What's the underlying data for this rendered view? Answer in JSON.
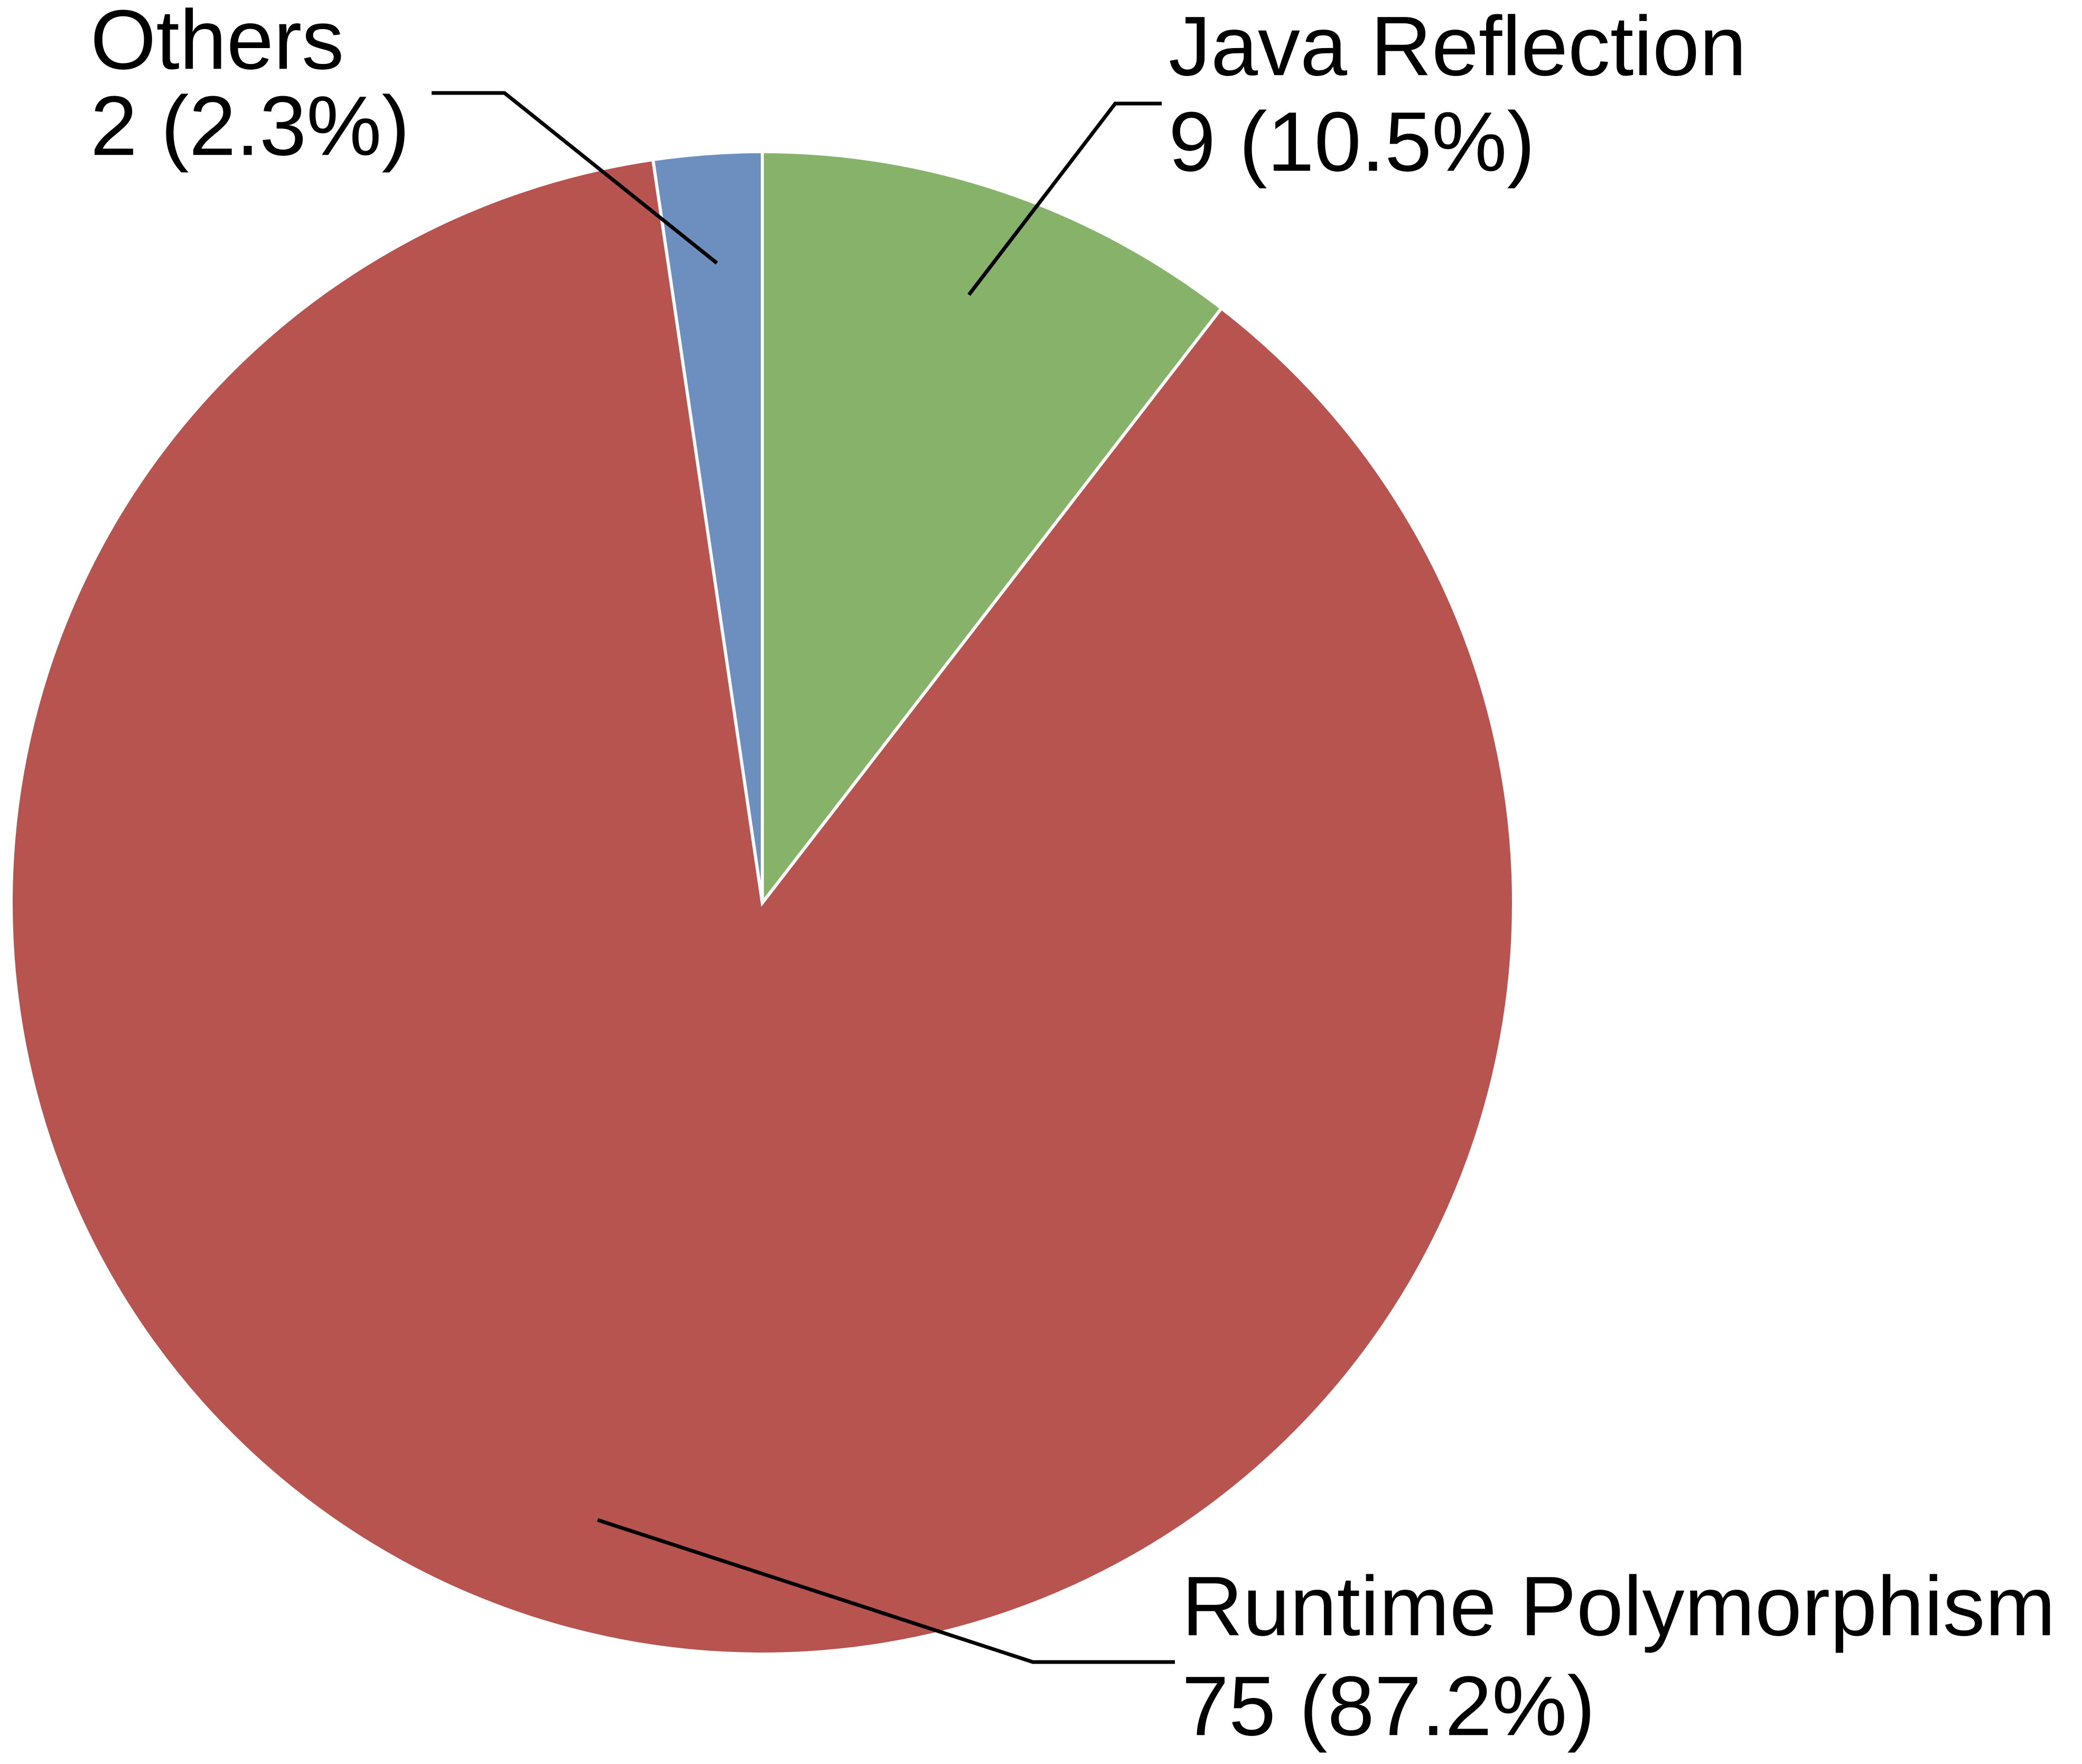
{
  "chart_data": {
    "type": "pie",
    "categories": [
      "Java Reflection",
      "Runtime Polymorphism",
      "Others"
    ],
    "values": [
      9,
      75,
      2
    ],
    "value_labels": [
      "9 (10.5%)",
      "75 (87.2%)",
      "2 (2.3%)"
    ],
    "colors": [
      "#87b26a",
      "#b85450",
      "#6c8fbf"
    ]
  }
}
